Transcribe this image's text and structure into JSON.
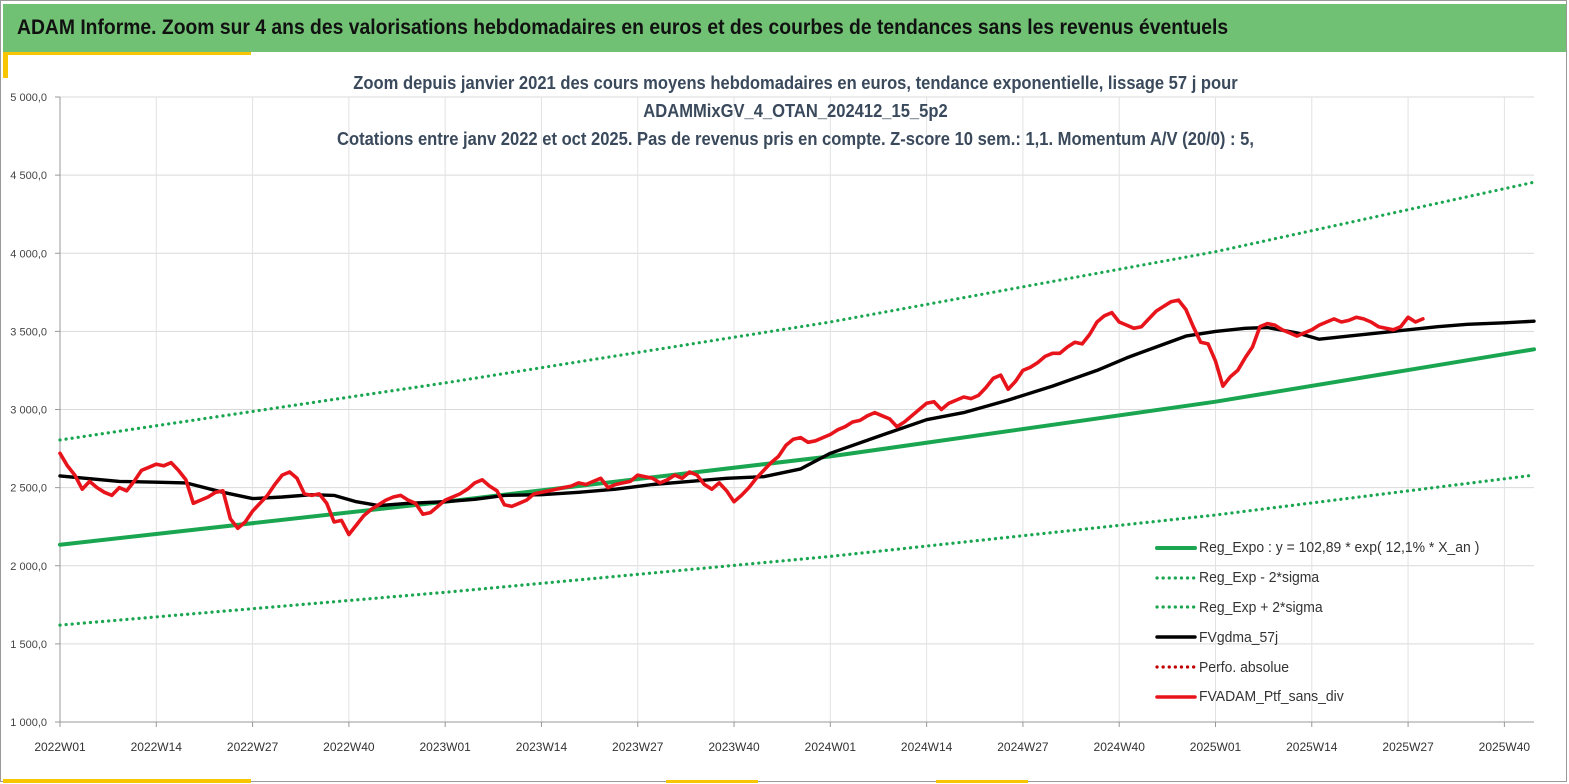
{
  "banner": {
    "title": "ADAM Informe. Zoom sur 4 ans des valorisations hebdomadaires en euros et des courbes de tendances sans les revenus éventuels"
  },
  "colors": {
    "banner_bg": "#71c174",
    "accent_yellow": "#f7c600",
    "trend": "#1aa650",
    "band": "#1aa650",
    "gdma": "#000000",
    "portfolio": "#e8141b",
    "perfo": "#c00000"
  },
  "chart_data": {
    "type": "line",
    "title": [
      "Zoom depuis janvier 2021 des cours moyens hebdomadaires  en euros, tendance exponentielle, lissage 57 j pour",
      "ADAMMixGV_4_OTAN_202412_15_5p2",
      "Cotations  entre janv 2022 et oct 2025. Pas de revenus pris en compte. Z-score 10 sem.: 1,1. Momentum A/V (20/0) : 5,"
    ],
    "x_tick_labels": [
      "2022W01",
      "2022W14",
      "2022W27",
      "2022W40",
      "2023W01",
      "2023W14",
      "2023W27",
      "2023W40",
      "2024W01",
      "2024W14",
      "2024W27",
      "2024W40",
      "2025W01",
      "2025W14",
      "2025W27",
      "2025W40"
    ],
    "x_ticks_week_index": [
      0,
      13,
      26,
      39,
      52,
      65,
      78,
      91,
      104,
      117,
      130,
      143,
      156,
      169,
      182,
      195
    ],
    "x_range_weeks": [
      0,
      199
    ],
    "y_tick_labels": [
      "1 000,0",
      "1 500,0",
      "2 000,0",
      "2 500,0",
      "3 000,0",
      "3 500,0",
      "4 000,0",
      "4 500,0",
      "5 000,0"
    ],
    "y_ticks": [
      1000,
      1500,
      2000,
      2500,
      3000,
      3500,
      4000,
      4500,
      5000
    ],
    "ylim": [
      1000,
      5000
    ],
    "grid": true,
    "legend_position": "bottom-right",
    "series": [
      {
        "name": "Reg_Expo : y = 102,89 * exp( 12,1% *  X_an )",
        "style": "solid",
        "color": "#1aa650",
        "points": [
          [
            0,
            2135
          ],
          [
            52,
            2410
          ],
          [
            104,
            2700
          ],
          [
            156,
            3050
          ],
          [
            199,
            3385
          ]
        ]
      },
      {
        "name": "Reg_Exp - 2*sigma",
        "style": "dotted",
        "color": "#1aa650",
        "points": [
          [
            0,
            1620
          ],
          [
            52,
            1830
          ],
          [
            104,
            2060
          ],
          [
            156,
            2325
          ],
          [
            199,
            2580
          ]
        ]
      },
      {
        "name": "Reg_Exp + 2*sigma",
        "style": "dotted",
        "color": "#1aa650",
        "points": [
          [
            0,
            2805
          ],
          [
            52,
            3170
          ],
          [
            104,
            3560
          ],
          [
            156,
            4010
          ],
          [
            199,
            4455
          ]
        ]
      },
      {
        "name": "FVgdma_57j",
        "style": "solid",
        "color": "#000000",
        "points": [
          [
            0,
            2575
          ],
          [
            8,
            2540
          ],
          [
            13,
            2535
          ],
          [
            17,
            2530
          ],
          [
            22,
            2470
          ],
          [
            26,
            2430
          ],
          [
            30,
            2440
          ],
          [
            34,
            2455
          ],
          [
            37,
            2450
          ],
          [
            40,
            2410
          ],
          [
            43,
            2385
          ],
          [
            47,
            2400
          ],
          [
            52,
            2410
          ],
          [
            56,
            2425
          ],
          [
            60,
            2450
          ],
          [
            65,
            2455
          ],
          [
            70,
            2470
          ],
          [
            75,
            2490
          ],
          [
            80,
            2520
          ],
          [
            85,
            2540
          ],
          [
            90,
            2560
          ],
          [
            95,
            2570
          ],
          [
            100,
            2620
          ],
          [
            104,
            2720
          ],
          [
            110,
            2820
          ],
          [
            117,
            2935
          ],
          [
            122,
            2980
          ],
          [
            128,
            3060
          ],
          [
            134,
            3150
          ],
          [
            140,
            3250
          ],
          [
            144,
            3330
          ],
          [
            148,
            3400
          ],
          [
            152,
            3470
          ],
          [
            156,
            3500
          ],
          [
            160,
            3520
          ],
          [
            163,
            3525
          ],
          [
            167,
            3490
          ],
          [
            170,
            3450
          ],
          [
            174,
            3470
          ],
          [
            178,
            3490
          ],
          [
            182,
            3510
          ],
          [
            186,
            3530
          ],
          [
            190,
            3545
          ],
          [
            195,
            3555
          ],
          [
            199,
            3565
          ]
        ]
      },
      {
        "name": "Perfo. absolue",
        "style": "dotted",
        "color": "#c00000",
        "points": []
      },
      {
        "name": "FVADAM_Ptf_sans_div",
        "style": "solid",
        "color": "#e8141b",
        "points": [
          [
            0,
            2720
          ],
          [
            1,
            2640
          ],
          [
            2,
            2580
          ],
          [
            3,
            2490
          ],
          [
            4,
            2540
          ],
          [
            5,
            2500
          ],
          [
            6,
            2470
          ],
          [
            7,
            2450
          ],
          [
            8,
            2500
          ],
          [
            9,
            2480
          ],
          [
            10,
            2540
          ],
          [
            11,
            2610
          ],
          [
            12,
            2630
          ],
          [
            13,
            2650
          ],
          [
            14,
            2640
          ],
          [
            15,
            2660
          ],
          [
            16,
            2610
          ],
          [
            17,
            2550
          ],
          [
            18,
            2400
          ],
          [
            19,
            2420
          ],
          [
            20,
            2440
          ],
          [
            21,
            2470
          ],
          [
            22,
            2480
          ],
          [
            23,
            2300
          ],
          [
            24,
            2240
          ],
          [
            25,
            2280
          ],
          [
            26,
            2350
          ],
          [
            27,
            2400
          ],
          [
            28,
            2450
          ],
          [
            29,
            2520
          ],
          [
            30,
            2580
          ],
          [
            31,
            2600
          ],
          [
            32,
            2560
          ],
          [
            33,
            2460
          ],
          [
            34,
            2450
          ],
          [
            35,
            2460
          ],
          [
            36,
            2400
          ],
          [
            37,
            2280
          ],
          [
            38,
            2290
          ],
          [
            39,
            2200
          ],
          [
            40,
            2260
          ],
          [
            41,
            2320
          ],
          [
            42,
            2360
          ],
          [
            43,
            2390
          ],
          [
            44,
            2420
          ],
          [
            45,
            2440
          ],
          [
            46,
            2450
          ],
          [
            47,
            2420
          ],
          [
            48,
            2400
          ],
          [
            49,
            2330
          ],
          [
            50,
            2340
          ],
          [
            51,
            2380
          ],
          [
            52,
            2420
          ],
          [
            53,
            2440
          ],
          [
            54,
            2460
          ],
          [
            55,
            2490
          ],
          [
            56,
            2530
          ],
          [
            57,
            2550
          ],
          [
            58,
            2510
          ],
          [
            59,
            2480
          ],
          [
            60,
            2390
          ],
          [
            61,
            2380
          ],
          [
            62,
            2400
          ],
          [
            63,
            2420
          ],
          [
            64,
            2460
          ],
          [
            65,
            2470
          ],
          [
            66,
            2480
          ],
          [
            67,
            2490
          ],
          [
            68,
            2500
          ],
          [
            69,
            2510
          ],
          [
            70,
            2530
          ],
          [
            71,
            2520
          ],
          [
            72,
            2540
          ],
          [
            73,
            2560
          ],
          [
            74,
            2500
          ],
          [
            75,
            2520
          ],
          [
            76,
            2530
          ],
          [
            77,
            2540
          ],
          [
            78,
            2580
          ],
          [
            79,
            2570
          ],
          [
            80,
            2560
          ],
          [
            81,
            2530
          ],
          [
            82,
            2550
          ],
          [
            83,
            2580
          ],
          [
            84,
            2560
          ],
          [
            85,
            2600
          ],
          [
            86,
            2580
          ],
          [
            87,
            2520
          ],
          [
            88,
            2490
          ],
          [
            89,
            2530
          ],
          [
            90,
            2480
          ],
          [
            91,
            2410
          ],
          [
            92,
            2450
          ],
          [
            93,
            2500
          ],
          [
            94,
            2560
          ],
          [
            95,
            2610
          ],
          [
            96,
            2660
          ],
          [
            97,
            2700
          ],
          [
            98,
            2770
          ],
          [
            99,
            2810
          ],
          [
            100,
            2820
          ],
          [
            101,
            2790
          ],
          [
            102,
            2800
          ],
          [
            103,
            2820
          ],
          [
            104,
            2840
          ],
          [
            105,
            2870
          ],
          [
            106,
            2890
          ],
          [
            107,
            2920
          ],
          [
            108,
            2930
          ],
          [
            109,
            2960
          ],
          [
            110,
            2980
          ],
          [
            111,
            2960
          ],
          [
            112,
            2940
          ],
          [
            113,
            2890
          ],
          [
            114,
            2920
          ],
          [
            115,
            2960
          ],
          [
            116,
            3000
          ],
          [
            117,
            3040
          ],
          [
            118,
            3050
          ],
          [
            119,
            3000
          ],
          [
            120,
            3040
          ],
          [
            121,
            3060
          ],
          [
            122,
            3080
          ],
          [
            123,
            3070
          ],
          [
            124,
            3090
          ],
          [
            125,
            3140
          ],
          [
            126,
            3200
          ],
          [
            127,
            3220
          ],
          [
            128,
            3130
          ],
          [
            129,
            3180
          ],
          [
            130,
            3250
          ],
          [
            131,
            3270
          ],
          [
            132,
            3300
          ],
          [
            133,
            3340
          ],
          [
            134,
            3360
          ],
          [
            135,
            3360
          ],
          [
            136,
            3400
          ],
          [
            137,
            3430
          ],
          [
            138,
            3420
          ],
          [
            139,
            3480
          ],
          [
            140,
            3560
          ],
          [
            141,
            3600
          ],
          [
            142,
            3620
          ],
          [
            143,
            3560
          ],
          [
            144,
            3540
          ],
          [
            145,
            3520
          ],
          [
            146,
            3530
          ],
          [
            147,
            3580
          ],
          [
            148,
            3630
          ],
          [
            149,
            3660
          ],
          [
            150,
            3690
          ],
          [
            151,
            3700
          ],
          [
            152,
            3640
          ],
          [
            153,
            3530
          ],
          [
            154,
            3430
          ],
          [
            155,
            3420
          ],
          [
            156,
            3310
          ],
          [
            157,
            3150
          ],
          [
            158,
            3210
          ],
          [
            159,
            3250
          ],
          [
            160,
            3330
          ],
          [
            161,
            3400
          ],
          [
            162,
            3530
          ],
          [
            163,
            3550
          ],
          [
            164,
            3540
          ],
          [
            165,
            3510
          ],
          [
            166,
            3490
          ],
          [
            167,
            3470
          ],
          [
            168,
            3490
          ],
          [
            169,
            3510
          ],
          [
            170,
            3540
          ],
          [
            171,
            3560
          ],
          [
            172,
            3580
          ],
          [
            173,
            3560
          ],
          [
            174,
            3570
          ],
          [
            175,
            3590
          ],
          [
            176,
            3580
          ],
          [
            177,
            3560
          ],
          [
            178,
            3530
          ],
          [
            179,
            3520
          ],
          [
            180,
            3510
          ],
          [
            181,
            3530
          ],
          [
            182,
            3590
          ],
          [
            183,
            3560
          ],
          [
            184,
            3580
          ]
        ]
      }
    ]
  }
}
